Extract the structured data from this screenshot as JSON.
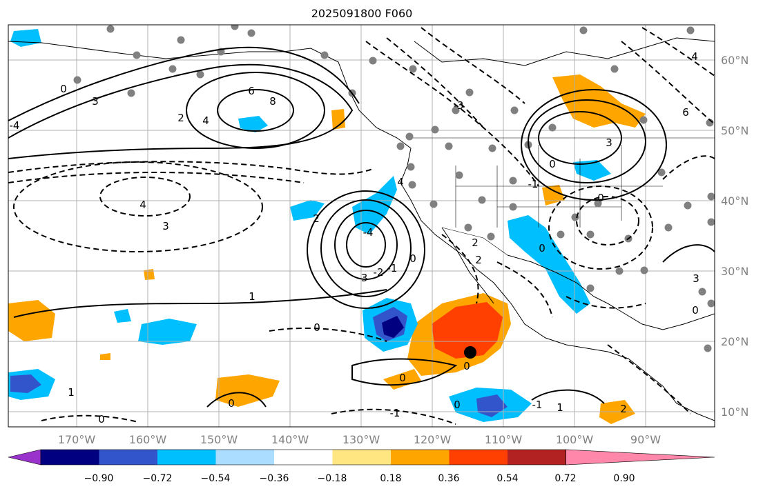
{
  "title": "2025091800 F060",
  "lon_labels": [
    "170°W",
    "160°W",
    "150°W",
    "140°W",
    "130°W",
    "120°W",
    "110°W",
    "100°W",
    "90°W"
  ],
  "lat_labels": [
    "60°N",
    "50°N",
    "40°N",
    "30°N",
    "20°N",
    "10°N"
  ],
  "colorbar": {
    "ticks": [
      "−0.90",
      "−0.72",
      "−0.54",
      "−0.36",
      "−0.18",
      "0.18",
      "0.36",
      "0.54",
      "0.72",
      "0.90"
    ],
    "colors": [
      "#9933cc",
      "#000080",
      "#3355cc",
      "#00bfff",
      "#aaddff",
      "#ffffff",
      "#ffe680",
      "#ffa500",
      "#ff4000",
      "#b22222",
      "#ff88aa"
    ]
  },
  "contour_labels": [
    "6",
    "8",
    "4",
    "2",
    "3",
    "4",
    "3",
    "2",
    "1",
    "0",
    "-1",
    "-2",
    "-3",
    "-4",
    "-3",
    "4",
    "2",
    "2",
    "0",
    "1",
    "3",
    "0",
    "-1",
    "0",
    "0",
    "0",
    "-1",
    "0",
    "1",
    "0",
    "-1",
    "2",
    "3",
    "6",
    "0",
    "-4",
    "4",
    "0",
    "0",
    "0"
  ],
  "legend_colors": {
    "positive": "#000000",
    "negative": "#000000"
  }
}
